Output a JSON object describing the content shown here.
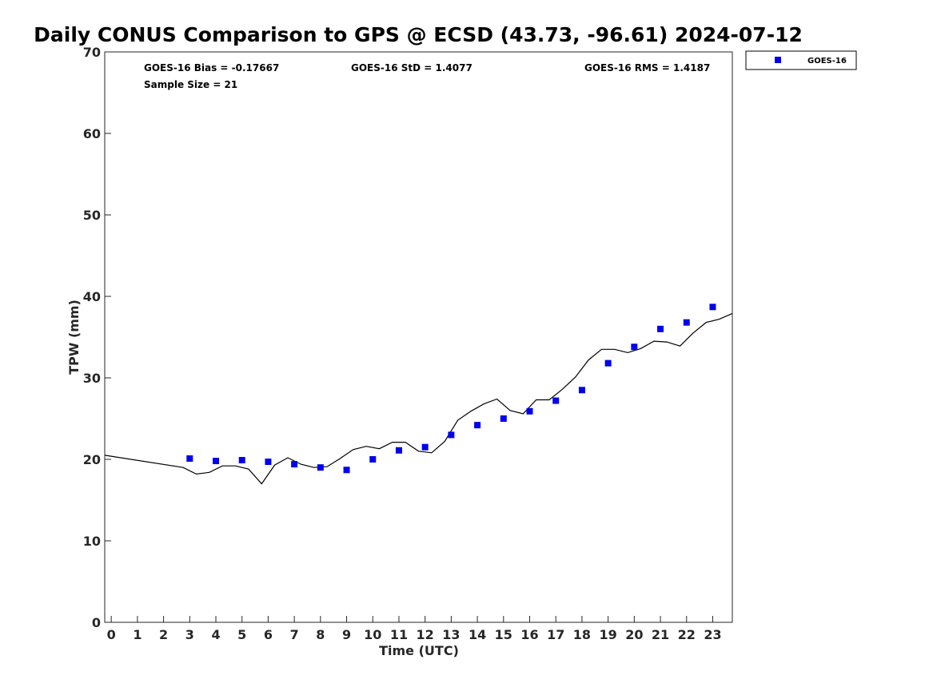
{
  "chart_data": {
    "type": "scatter",
    "title": "Daily CONUS Comparison to GPS @ ECSD (43.73, -96.61) 2024-07-12",
    "xlabel": "Time (UTC)",
    "ylabel": "TPW (mm)",
    "xlim": [
      -0.25,
      23.75
    ],
    "ylim": [
      0,
      70
    ],
    "x_ticks": [
      0,
      1,
      2,
      3,
      4,
      5,
      6,
      7,
      8,
      9,
      10,
      11,
      12,
      13,
      14,
      15,
      16,
      17,
      18,
      19,
      20,
      21,
      22,
      23
    ],
    "y_ticks": [
      0,
      10,
      20,
      30,
      40,
      50,
      60,
      70
    ],
    "stats": {
      "bias": "GOES-16 Bias = -0.17667",
      "sample_size": "Sample Size = 21",
      "std": "GOES-16 StD = 1.4077",
      "rms": "GOES-16 RMS = 1.4187"
    },
    "legend": {
      "position": "top-right",
      "entries": [
        "GOES-16"
      ]
    },
    "colors": {
      "goes": "#0000ee",
      "gps": "#000000"
    },
    "series": [
      {
        "name": "GOES-16",
        "style": "square-marker",
        "x": [
          3,
          4,
          5,
          6,
          7,
          8,
          9,
          10,
          11,
          12,
          13,
          14,
          15,
          16,
          17,
          18,
          19,
          20,
          21,
          22,
          23
        ],
        "y": [
          20.1,
          19.8,
          19.9,
          19.7,
          19.4,
          19.0,
          18.7,
          20.0,
          21.1,
          21.5,
          23.0,
          24.2,
          25.0,
          25.9,
          27.2,
          28.5,
          31.8,
          33.8,
          36.0,
          36.8,
          38.7
        ]
      },
      {
        "style": "line",
        "x": [
          -0.25,
          2.75,
          3.25,
          3.75,
          4.25,
          4.75,
          5.25,
          5.75,
          6.25,
          6.75,
          7.25,
          7.75,
          8.25,
          8.75,
          9.25,
          9.75,
          10.25,
          10.75,
          11.25,
          11.75,
          12.25,
          12.75,
          13.25,
          13.75,
          14.25,
          14.75,
          15.25,
          15.75,
          16.25,
          16.75,
          17.25,
          17.75,
          18.25,
          18.75,
          19.25,
          19.75,
          20.25,
          20.75,
          21.25,
          21.75,
          22.25,
          22.75,
          23.25,
          23.75
        ],
        "y": [
          20.5,
          19.0,
          18.2,
          18.4,
          19.2,
          19.2,
          18.8,
          17.0,
          19.3,
          20.2,
          19.4,
          19.0,
          19.1,
          20.1,
          21.2,
          21.6,
          21.3,
          22.1,
          22.1,
          21.0,
          20.8,
          22.2,
          24.8,
          25.9,
          26.8,
          27.4,
          26.0,
          25.6,
          27.3,
          27.3,
          28.6,
          30.1,
          32.2,
          33.5,
          33.5,
          33.1,
          33.6,
          34.5,
          34.4,
          33.9,
          35.5,
          36.8,
          37.2,
          37.9
        ]
      }
    ]
  }
}
